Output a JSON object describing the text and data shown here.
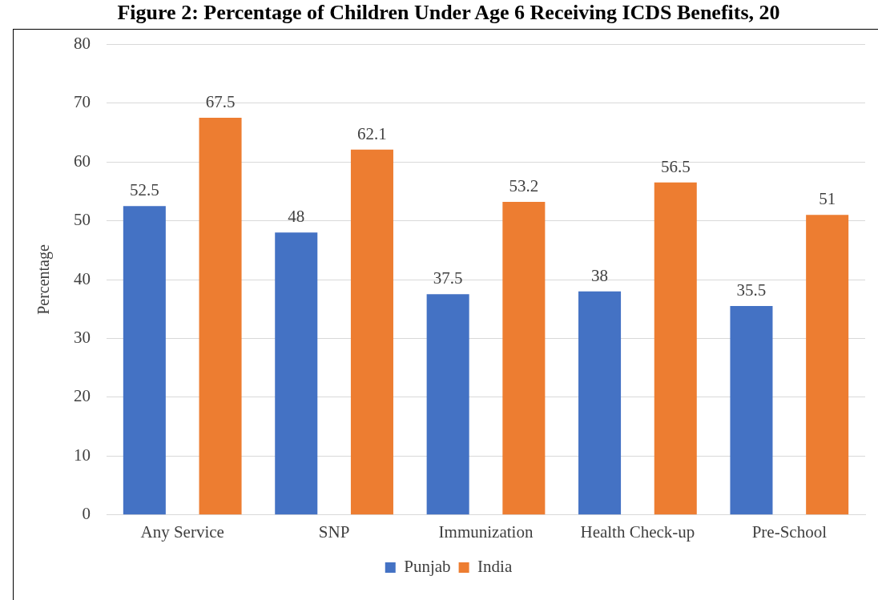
{
  "chart_data": {
    "type": "bar",
    "title": "Figure 2: Percentage of Children Under Age 6 Receiving ICDS Benefits, 20",
    "ylabel": "Percentage",
    "categories": [
      "Any Service",
      "SNP",
      "Immunization",
      "Health Check-up",
      "Pre-School"
    ],
    "series": [
      {
        "name": "Punjab",
        "color": "#4472c4",
        "values": [
          52.5,
          48,
          37.5,
          38,
          35.5
        ]
      },
      {
        "name": "India",
        "color": "#ed7d31",
        "values": [
          67.5,
          62.1,
          53.2,
          56.5,
          51
        ]
      }
    ],
    "ylim": [
      0,
      80
    ],
    "yticks": [
      0,
      10,
      20,
      30,
      40,
      50,
      60,
      70,
      80
    ],
    "grid": "y",
    "legend": "bottom",
    "data_labels": true
  }
}
